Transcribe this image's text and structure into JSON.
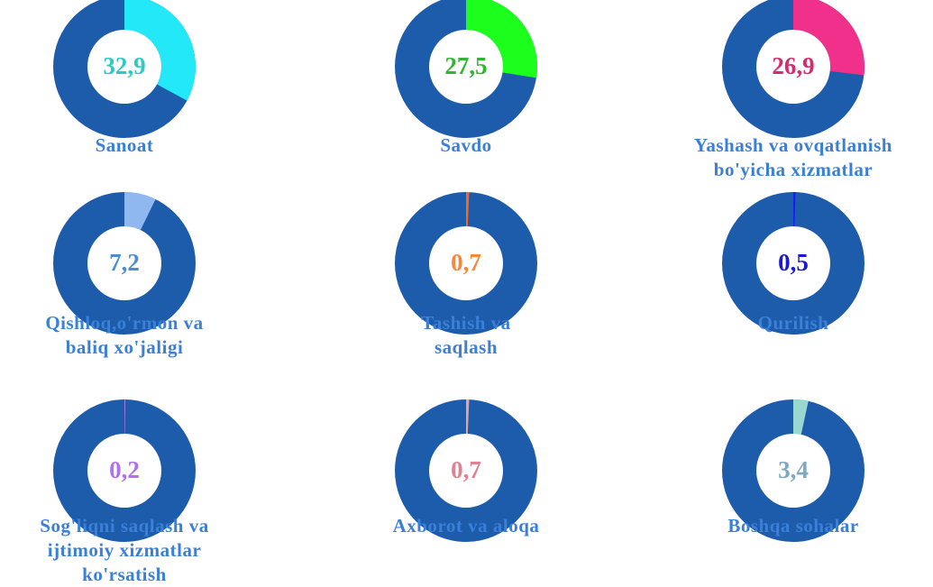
{
  "chart_data": [
    {
      "type": "donut",
      "title": [
        "Sanoat"
      ],
      "values": [
        32.9
      ],
      "value_labels": [
        "32,9"
      ],
      "color": "#22e8f8",
      "label_color": "#2ec9c4",
      "ring_color": "#1d5cab"
    },
    {
      "type": "donut",
      "title": [
        "Savdo"
      ],
      "values": [
        27.5
      ],
      "value_labels": [
        "27,5"
      ],
      "color": "#1cff1c",
      "label_color": "#2fb82f",
      "ring_color": "#1d5cab"
    },
    {
      "type": "donut",
      "title": [
        "Yashash va ovqatlanish",
        "bo'yicha xizmatlar"
      ],
      "values": [
        26.9
      ],
      "value_labels": [
        "26,9"
      ],
      "color": "#f0308a",
      "label_color": "#d82a6c",
      "ring_color": "#1d5cab"
    },
    {
      "type": "donut",
      "title": [
        "Qishloq,o'rmon va",
        "baliq xo'jaligi"
      ],
      "values": [
        7.2
      ],
      "value_labels": [
        "7,2"
      ],
      "color": "#8fb8f0",
      "label_color": "#4a8ed0",
      "ring_color": "#1d5cab"
    },
    {
      "type": "donut",
      "title": [
        "Tashish va",
        "saqlash"
      ],
      "values": [
        0.7
      ],
      "value_labels": [
        "0,7"
      ],
      "color": "#fa681c",
      "label_color": "#f5883a",
      "ring_color": "#1d5cab"
    },
    {
      "type": "donut",
      "title": [
        "Qurilish"
      ],
      "values": [
        0.5
      ],
      "value_labels": [
        "0,5"
      ],
      "color": "#1a1aff",
      "label_color": "#1a1ad0",
      "ring_color": "#1d5cab"
    },
    {
      "type": "donut",
      "title": [
        "Sog'liqni saqlash va",
        "ijtimoiy xizmatlar",
        "ko'rsatish"
      ],
      "values": [
        0.2
      ],
      "value_labels": [
        "0,2"
      ],
      "color": "#b07af0",
      "label_color": "#b070f0",
      "ring_color": "#1d5cab"
    },
    {
      "type": "donut",
      "title": [
        "Axborot va aloqa"
      ],
      "values": [
        0.7
      ],
      "value_labels": [
        "0,7"
      ],
      "color": "#f0a090",
      "label_color": "#e08090",
      "ring_color": "#1d5cab"
    },
    {
      "type": "donut",
      "title": [
        "Boshqa sohalar"
      ],
      "values": [
        3.4
      ],
      "value_labels": [
        "3,4"
      ],
      "color": "#98d8d0",
      "label_color": "#80a8c0",
      "ring_color": "#1d5cab"
    }
  ]
}
